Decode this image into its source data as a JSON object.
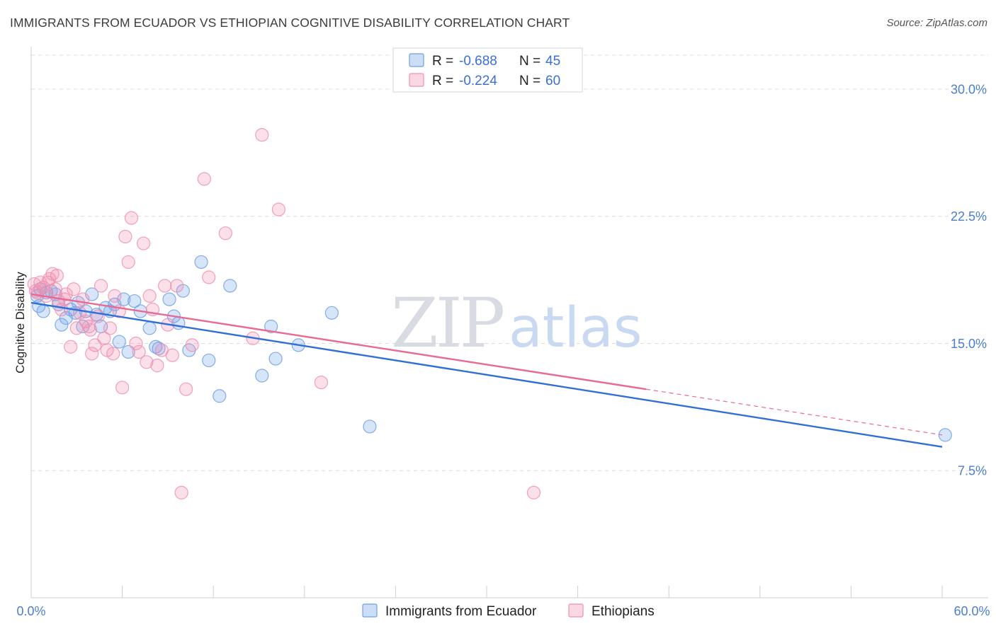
{
  "title": "IMMIGRANTS FROM ECUADOR VS ETHIOPIAN COGNITIVE DISABILITY CORRELATION CHART",
  "source": "Source: ZipAtlas.com",
  "watermark": {
    "zip": "ZIP",
    "atlas": "atlas"
  },
  "legend": {
    "r_label": "R =",
    "n_label": "N =",
    "rows": [
      {
        "r": "-0.688",
        "n": "45",
        "color": "#6ea0e6"
      },
      {
        "r": "-0.224",
        "n": "60",
        "color": "#f08fb0"
      }
    ]
  },
  "bottom_legend": [
    "Immigrants from Ecuador",
    "Ethiopians"
  ],
  "chart_data": {
    "type": "scatter",
    "title": "IMMIGRANTS FROM ECUADOR VS ETHIOPIAN COGNITIVE DISABILITY CORRELATION CHART",
    "xlabel": "",
    "ylabel": "Cognitive Disability",
    "xlim": [
      0,
      60
    ],
    "ylim": [
      0,
      32
    ],
    "x_tick_labels": [
      "0.0%",
      "60.0%"
    ],
    "y_ticks": [
      7.5,
      15.0,
      22.5,
      30.0
    ],
    "y_tick_labels": [
      "7.5%",
      "15.0%",
      "22.5%",
      "30.0%"
    ],
    "grid": true,
    "series": [
      {
        "name": "Immigrants from Ecuador",
        "color": "#6ea0e6",
        "line_color": "#2f6fd6",
        "trend": {
          "x": [
            0,
            60
          ],
          "y": [
            17.4,
            8.9
          ]
        },
        "points": [
          [
            0.4,
            17.8
          ],
          [
            0.5,
            17.2
          ],
          [
            0.8,
            16.9
          ],
          [
            1.0,
            18.0
          ],
          [
            1.3,
            18.1
          ],
          [
            1.6,
            17.9
          ],
          [
            1.8,
            17.3
          ],
          [
            2.0,
            16.1
          ],
          [
            2.3,
            16.5
          ],
          [
            2.6,
            17.0
          ],
          [
            2.9,
            16.8
          ],
          [
            3.1,
            17.4
          ],
          [
            3.4,
            16.0
          ],
          [
            3.6,
            16.9
          ],
          [
            4.0,
            17.9
          ],
          [
            4.3,
            16.7
          ],
          [
            4.6,
            16.0
          ],
          [
            4.9,
            17.1
          ],
          [
            5.2,
            16.9
          ],
          [
            5.5,
            17.3
          ],
          [
            5.8,
            15.1
          ],
          [
            6.1,
            17.6
          ],
          [
            6.4,
            14.5
          ],
          [
            6.8,
            17.5
          ],
          [
            7.2,
            16.9
          ],
          [
            7.8,
            15.9
          ],
          [
            8.2,
            14.8
          ],
          [
            8.4,
            14.7
          ],
          [
            9.1,
            17.6
          ],
          [
            9.4,
            16.6
          ],
          [
            9.7,
            16.2
          ],
          [
            10.0,
            18.1
          ],
          [
            10.4,
            14.6
          ],
          [
            11.2,
            19.8
          ],
          [
            11.7,
            14.0
          ],
          [
            12.4,
            11.9
          ],
          [
            13.1,
            18.4
          ],
          [
            15.2,
            13.1
          ],
          [
            15.8,
            16.0
          ],
          [
            16.1,
            14.1
          ],
          [
            17.6,
            14.9
          ],
          [
            19.8,
            16.8
          ],
          [
            22.3,
            10.1
          ],
          [
            60.2,
            9.6
          ],
          [
            0.6,
            18.2
          ]
        ]
      },
      {
        "name": "Ethiopians",
        "color": "#f08fb0",
        "line_color": "#e86a93",
        "trend": {
          "x": [
            0,
            40.5
          ],
          "y": [
            17.9,
            12.3
          ]
        },
        "trend_dashed": {
          "x": [
            40.5,
            60
          ],
          "y": [
            12.3,
            9.6
          ]
        },
        "points": [
          [
            0.2,
            18.5
          ],
          [
            0.4,
            18.0
          ],
          [
            0.6,
            18.6
          ],
          [
            0.8,
            18.3
          ],
          [
            1.0,
            17.8
          ],
          [
            1.2,
            18.8
          ],
          [
            1.4,
            19.1
          ],
          [
            1.6,
            18.2
          ],
          [
            1.8,
            17.5
          ],
          [
            2.0,
            17.0
          ],
          [
            2.3,
            17.9
          ],
          [
            2.6,
            14.8
          ],
          [
            2.8,
            18.2
          ],
          [
            3.0,
            15.9
          ],
          [
            3.2,
            16.8
          ],
          [
            3.4,
            17.6
          ],
          [
            3.6,
            16.3
          ],
          [
            3.8,
            16.0
          ],
          [
            4.0,
            14.4
          ],
          [
            4.2,
            14.9
          ],
          [
            4.4,
            16.6
          ],
          [
            4.6,
            18.4
          ],
          [
            4.8,
            15.3
          ],
          [
            5.0,
            14.6
          ],
          [
            5.2,
            15.9
          ],
          [
            5.5,
            17.8
          ],
          [
            5.8,
            16.9
          ],
          [
            6.0,
            12.4
          ],
          [
            6.2,
            21.3
          ],
          [
            6.4,
            19.8
          ],
          [
            6.6,
            22.4
          ],
          [
            6.9,
            15.0
          ],
          [
            7.1,
            14.5
          ],
          [
            7.4,
            20.9
          ],
          [
            7.6,
            13.9
          ],
          [
            7.8,
            17.8
          ],
          [
            8.0,
            17.0
          ],
          [
            8.3,
            13.7
          ],
          [
            8.6,
            14.6
          ],
          [
            9.0,
            16.1
          ],
          [
            9.3,
            14.3
          ],
          [
            9.6,
            18.4
          ],
          [
            9.9,
            6.2
          ],
          [
            10.2,
            12.3
          ],
          [
            10.6,
            14.9
          ],
          [
            11.4,
            24.7
          ],
          [
            11.7,
            18.9
          ],
          [
            12.8,
            21.5
          ],
          [
            14.6,
            15.3
          ],
          [
            15.2,
            27.3
          ],
          [
            16.3,
            22.9
          ],
          [
            19.1,
            12.7
          ],
          [
            33.1,
            6.2
          ],
          [
            1.1,
            18.6
          ],
          [
            0.3,
            18.1
          ],
          [
            2.2,
            17.6
          ],
          [
            3.9,
            15.8
          ],
          [
            5.4,
            14.4
          ],
          [
            8.8,
            18.4
          ],
          [
            1.7,
            19.0
          ]
        ]
      }
    ]
  }
}
